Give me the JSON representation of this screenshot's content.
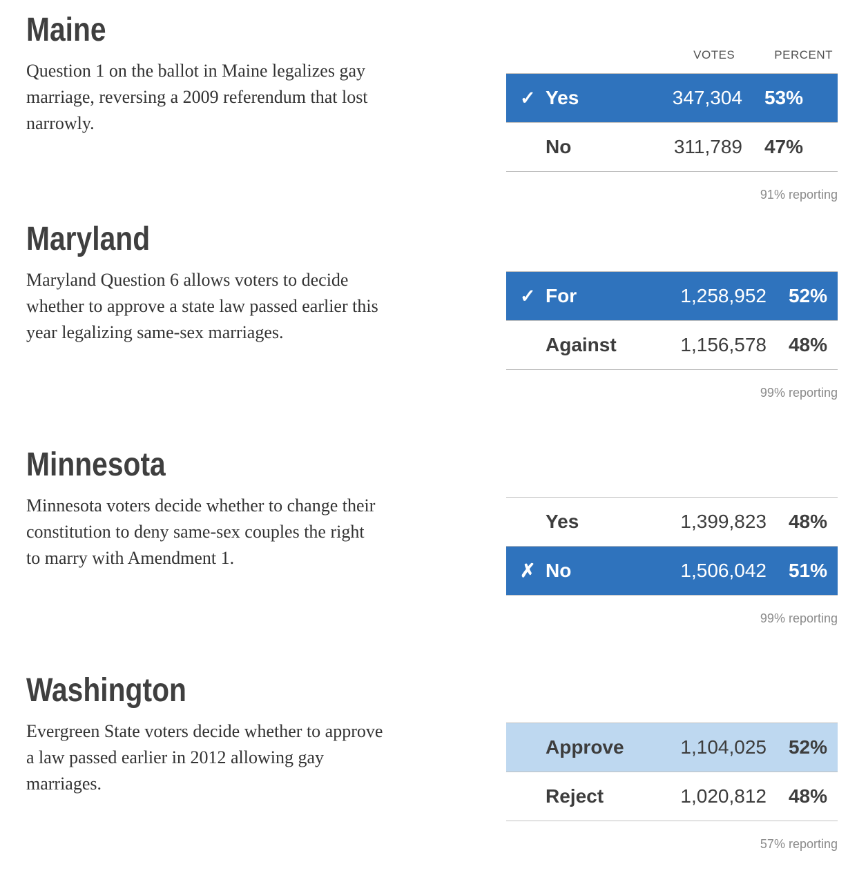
{
  "colors": {
    "win_row_blue": "#2f73bd",
    "lead_row_light_blue": "#bed8f0",
    "heading_gray": "#3f3f3f",
    "border_gray": "#bfbfbf"
  },
  "table_header": {
    "votes": "VOTES",
    "percent": "PERCENT"
  },
  "sections": [
    {
      "state": "Maine",
      "description": "Question 1 on the ballot in Maine legalizes gay\nmarriage, reversing a 2009 referendum that lost\nnarrowly.",
      "reporting": "91% reporting",
      "rows": [
        {
          "label": "Yes",
          "votes": "347,304",
          "percent": "53%",
          "mark": "✓",
          "state": "winner"
        },
        {
          "label": "No",
          "votes": "311,789",
          "percent": "47%",
          "mark": "",
          "state": "none"
        }
      ]
    },
    {
      "state": "Maryland",
      "description": "Maryland Question 6 allows voters to decide\nwhether to approve a state law passed earlier this\nyear legalizing same-sex marriages.",
      "reporting": "99% reporting",
      "rows": [
        {
          "label": "For",
          "votes": "1,258,952",
          "percent": "52%",
          "mark": "✓",
          "state": "winner"
        },
        {
          "label": "Against",
          "votes": "1,156,578",
          "percent": "48%",
          "mark": "",
          "state": "none"
        }
      ]
    },
    {
      "state": "Minnesota",
      "description": "Minnesota voters decide whether to change their\nconstitution to deny same-sex couples the right\nto marry with Amendment 1.",
      "reporting": "99% reporting",
      "rows": [
        {
          "label": "Yes",
          "votes": "1,399,823",
          "percent": "48%",
          "mark": "",
          "state": "none"
        },
        {
          "label": "No",
          "votes": "1,506,042",
          "percent": "51%",
          "mark": "✗",
          "state": "winner"
        }
      ]
    },
    {
      "state": "Washington",
      "description": "Evergreen State voters decide whether to approve\na law passed earlier in 2012 allowing gay\nmarriages.",
      "reporting": "57% reporting",
      "rows": [
        {
          "label": "Approve",
          "votes": "1,104,025",
          "percent": "52%",
          "mark": "",
          "state": "leading"
        },
        {
          "label": "Reject",
          "votes": "1,020,812",
          "percent": "48%",
          "mark": "",
          "state": "none"
        }
      ]
    }
  ]
}
